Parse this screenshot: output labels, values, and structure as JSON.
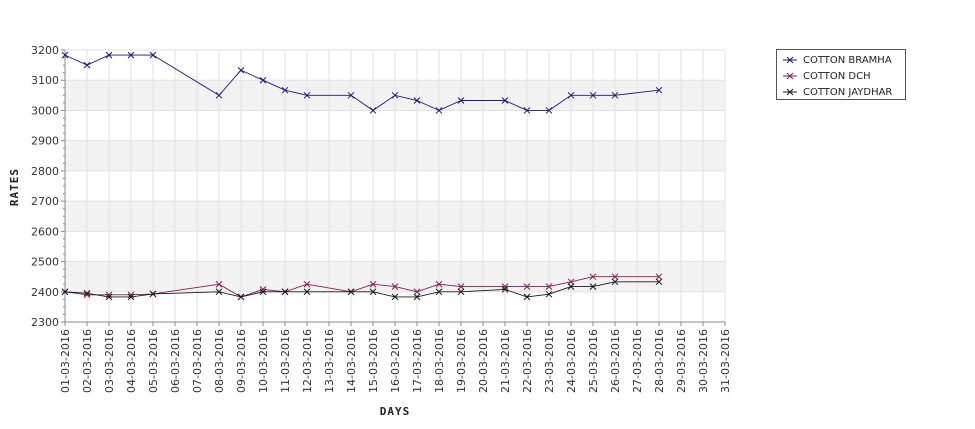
{
  "chart_data": {
    "type": "line",
    "title": "",
    "xlabel": "DAYS",
    "ylabel": "RATES",
    "ylim": [
      2300,
      3200
    ],
    "yticks": [
      2300,
      2400,
      2500,
      2600,
      2700,
      2800,
      2900,
      3000,
      3100,
      3200
    ],
    "categories": [
      "01-03-2016",
      "02-03-2016",
      "03-03-2016",
      "04-03-2016",
      "05-03-2016",
      "06-03-2016",
      "07-03-2016",
      "08-03-2016",
      "09-03-2016",
      "10-03-2016",
      "11-03-2016",
      "12-03-2016",
      "13-03-2016",
      "14-03-2016",
      "15-03-2016",
      "16-03-2016",
      "17-03-2016",
      "18-03-2016",
      "19-03-2016",
      "20-03-2016",
      "21-03-2016",
      "22-03-2016",
      "23-03-2016",
      "24-03-2016",
      "25-03-2016",
      "26-03-2016",
      "27-03-2016",
      "28-03-2016",
      "29-03-2016",
      "30-03-2016",
      "31-03-2016"
    ],
    "grid": true,
    "legend_position": "right",
    "series": [
      {
        "name": "COTTON BRAMHA",
        "color": "#1a1a7a",
        "values": [
          3183,
          3150,
          3183,
          3183,
          3183,
          null,
          null,
          3050,
          3133,
          3100,
          3067,
          3050,
          null,
          3050,
          3000,
          3050,
          3033,
          3000,
          3033,
          null,
          3033,
          3000,
          3000,
          3050,
          3050,
          3050,
          null,
          3067,
          null,
          null,
          null
        ]
      },
      {
        "name": "COTTON DCH",
        "color": "#8b1a5a",
        "values": [
          2400,
          2390,
          2390,
          2390,
          2393,
          null,
          null,
          2425,
          2383,
          2408,
          2400,
          2425,
          null,
          2400,
          2425,
          2417,
          2400,
          2425,
          2417,
          null,
          2417,
          2417,
          2417,
          2433,
          2450,
          2450,
          null,
          2450,
          null,
          null,
          null
        ]
      },
      {
        "name": "COTTON JAYDHAR",
        "color": "#1a1a1a",
        "values": [
          2400,
          2395,
          2383,
          2383,
          2393,
          null,
          null,
          2400,
          2383,
          2400,
          2400,
          2400,
          null,
          2400,
          2400,
          2383,
          2383,
          2400,
          2400,
          null,
          2408,
          2383,
          2392,
          2417,
          2417,
          2433,
          null,
          2433,
          null,
          null,
          null
        ]
      }
    ]
  }
}
